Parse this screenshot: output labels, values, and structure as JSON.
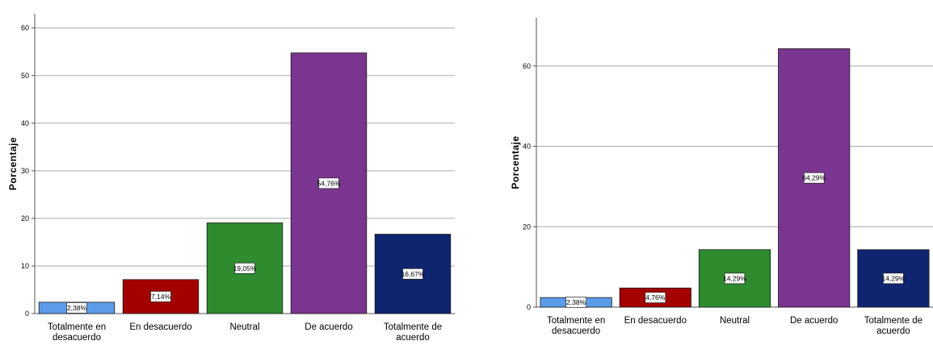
{
  "chart_data": [
    {
      "type": "bar",
      "ylabel": "Porcentaje",
      "xlabel": "",
      "ylim": [
        0,
        63
      ],
      "yticks": [
        0,
        10,
        20,
        30,
        40,
        50,
        60
      ],
      "grid": true,
      "categories": [
        [
          "Totalmente en",
          "desacuerdo"
        ],
        [
          "En desacuerdo"
        ],
        [
          "Neutral"
        ],
        [
          "De acuerdo"
        ],
        [
          "Totalmente de",
          "acuerdo"
        ]
      ],
      "values": [
        2.38,
        7.14,
        19.05,
        54.76,
        16.67
      ],
      "data_labels": [
        "2,38%",
        "7,14%",
        "19,05%",
        "54,76%",
        "16,67%"
      ],
      "colors": [
        "#5b9be8",
        "#a30000",
        "#2e8b2e",
        "#7a3590",
        "#0f2570"
      ]
    },
    {
      "type": "bar",
      "ylabel": "Porcentaje",
      "xlabel": "",
      "ylim": [
        0,
        72
      ],
      "yticks": [
        0,
        20,
        40,
        60
      ],
      "grid": true,
      "categories": [
        [
          "Totalmente en",
          "desacuerdo"
        ],
        [
          "En desacuerdo"
        ],
        [
          "Neutral"
        ],
        [
          "De acuerdo"
        ],
        [
          "Totalmente de",
          "acuerdo"
        ]
      ],
      "values": [
        2.38,
        4.76,
        14.29,
        64.29,
        14.29
      ],
      "data_labels": [
        "2,38%",
        "4,76%",
        "14,29%",
        "64,29%",
        "14,29%"
      ],
      "colors": [
        "#5b9be8",
        "#a30000",
        "#2e8b2e",
        "#7a3590",
        "#0f2570"
      ]
    }
  ]
}
